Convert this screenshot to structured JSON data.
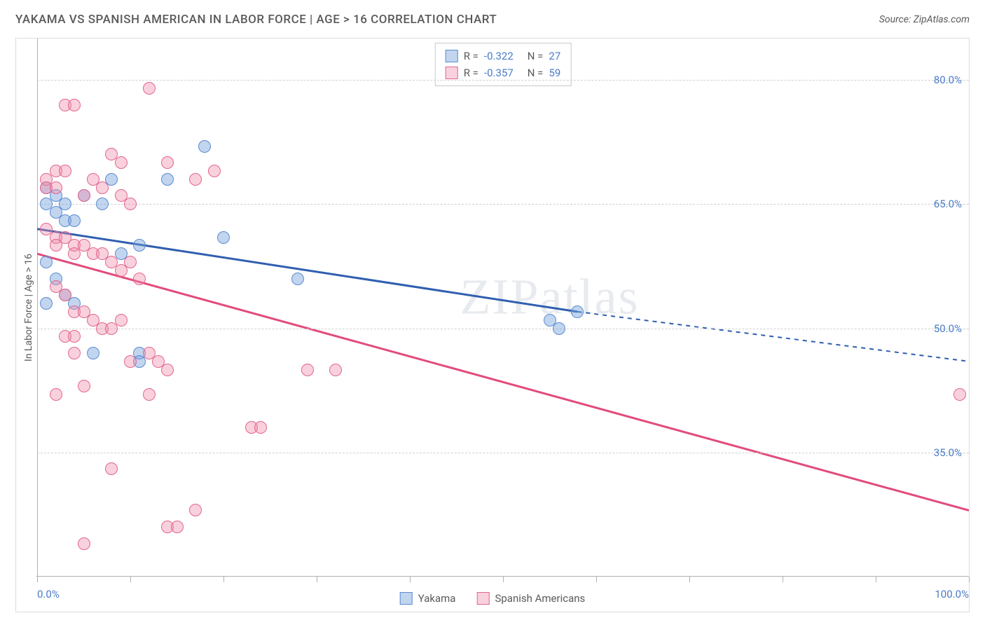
{
  "title": "YAKAMA VS SPANISH AMERICAN IN LABOR FORCE | AGE > 16 CORRELATION CHART",
  "source_label": "Source: ZipAtlas.com",
  "y_axis_label": "In Labor Force | Age > 16",
  "watermark": "ZIPatlas",
  "chart": {
    "type": "scatter-with-regression",
    "x_domain": [
      0,
      100
    ],
    "y_domain": [
      20,
      85
    ],
    "x_ticks": [
      0,
      10,
      20,
      30,
      40,
      50,
      60,
      70,
      80,
      90,
      100
    ],
    "x_tick_labels_shown": {
      "0": "0.0%",
      "100": "100.0%"
    },
    "y_gridlines": [
      35,
      50,
      65,
      80
    ],
    "y_tick_labels": {
      "35": "35.0%",
      "50": "50.0%",
      "65": "65.0%",
      "80": "80.0%"
    },
    "point_radius": 9,
    "point_stroke_width": 1.5,
    "grid_color": "#d0d0d0",
    "axis_color": "#b0b0b0",
    "background_color": "#ffffff",
    "series": [
      {
        "name": "Yakama",
        "fill": "rgba(120,162,219,0.45)",
        "stroke": "#5a8bd0",
        "R": "-0.322",
        "N": "27",
        "regression": {
          "x1": 0,
          "y1": 62,
          "x2": 58,
          "y2": 52,
          "solid_until_x": 58,
          "dash_to_x": 100,
          "dash_y2": 46,
          "stroke": "#2f5fb0",
          "width": 3
        },
        "points": [
          [
            1,
            67
          ],
          [
            1,
            65
          ],
          [
            2,
            66
          ],
          [
            2,
            64
          ],
          [
            3,
            65
          ],
          [
            3,
            63
          ],
          [
            4,
            63
          ],
          [
            5,
            66
          ],
          [
            7,
            65
          ],
          [
            8,
            68
          ],
          [
            14,
            68
          ],
          [
            18,
            72
          ],
          [
            1,
            58
          ],
          [
            2,
            56
          ],
          [
            3,
            54
          ],
          [
            4,
            53
          ],
          [
            1,
            53
          ],
          [
            9,
            59
          ],
          [
            11,
            60
          ],
          [
            6,
            47
          ],
          [
            11,
            47
          ],
          [
            11,
            46
          ],
          [
            20,
            61
          ],
          [
            28,
            56
          ],
          [
            55,
            51
          ],
          [
            56,
            50
          ],
          [
            58,
            52
          ]
        ]
      },
      {
        "name": "Spanish Americans",
        "fill": "rgba(239,140,170,0.40)",
        "stroke": "#e2658f",
        "R": "-0.357",
        "N": "59",
        "regression": {
          "x1": 0,
          "y1": 59,
          "x2": 100,
          "y2": 28,
          "solid_until_x": 100,
          "stroke": "#e24b7a",
          "width": 3
        },
        "points": [
          [
            1,
            68
          ],
          [
            1,
            67
          ],
          [
            2,
            67
          ],
          [
            2,
            69
          ],
          [
            3,
            69
          ],
          [
            3,
            77
          ],
          [
            4,
            77
          ],
          [
            5,
            66
          ],
          [
            6,
            68
          ],
          [
            7,
            67
          ],
          [
            8,
            71
          ],
          [
            9,
            70
          ],
          [
            9,
            66
          ],
          [
            10,
            65
          ],
          [
            12,
            79
          ],
          [
            14,
            70
          ],
          [
            17,
            68
          ],
          [
            19,
            69
          ],
          [
            1,
            62
          ],
          [
            2,
            61
          ],
          [
            2,
            60
          ],
          [
            3,
            61
          ],
          [
            4,
            60
          ],
          [
            4,
            59
          ],
          [
            5,
            60
          ],
          [
            6,
            59
          ],
          [
            7,
            59
          ],
          [
            8,
            58
          ],
          [
            9,
            57
          ],
          [
            10,
            58
          ],
          [
            11,
            56
          ],
          [
            2,
            55
          ],
          [
            3,
            54
          ],
          [
            4,
            52
          ],
          [
            5,
            52
          ],
          [
            6,
            51
          ],
          [
            7,
            50
          ],
          [
            8,
            50
          ],
          [
            9,
            51
          ],
          [
            3,
            49
          ],
          [
            4,
            49
          ],
          [
            4,
            47
          ],
          [
            10,
            46
          ],
          [
            12,
            47
          ],
          [
            13,
            46
          ],
          [
            2,
            42
          ],
          [
            5,
            43
          ],
          [
            12,
            42
          ],
          [
            14,
            45
          ],
          [
            23,
            38
          ],
          [
            24,
            38
          ],
          [
            29,
            45
          ],
          [
            32,
            45
          ],
          [
            8,
            33
          ],
          [
            14,
            26
          ],
          [
            15,
            26
          ],
          [
            17,
            28
          ],
          [
            5,
            24
          ],
          [
            99,
            42
          ]
        ]
      }
    ]
  },
  "stats_box": {
    "rows": [
      {
        "swatch_fill": "rgba(120,162,219,0.45)",
        "swatch_stroke": "#5a8bd0",
        "R": "-0.322",
        "N": "27"
      },
      {
        "swatch_fill": "rgba(239,140,170,0.40)",
        "swatch_stroke": "#e2658f",
        "R": "-0.357",
        "N": "59"
      }
    ]
  },
  "legend": [
    {
      "swatch_fill": "rgba(120,162,219,0.45)",
      "swatch_stroke": "#5a8bd0",
      "label": "Yakama"
    },
    {
      "swatch_fill": "rgba(239,140,170,0.40)",
      "swatch_stroke": "#e2658f",
      "label": "Spanish Americans"
    }
  ]
}
